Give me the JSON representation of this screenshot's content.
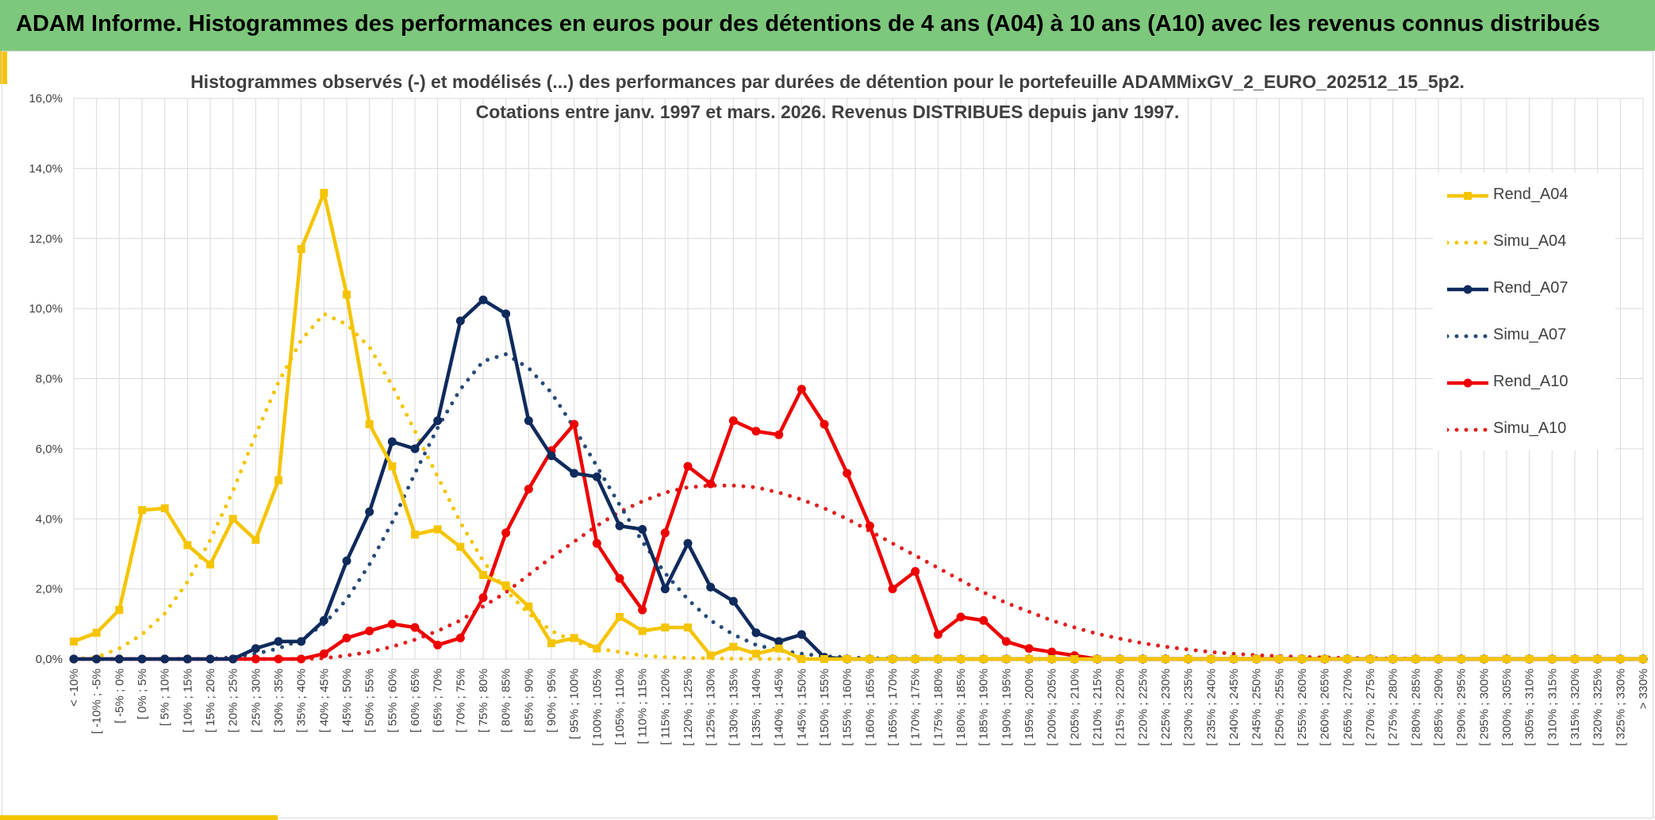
{
  "header": {
    "title": "ADAM Informe. Histogrammes des performances en euros pour des détentions de 4 ans (A04) à 10 ans (A10) avec les revenus connus distribués"
  },
  "colors": {
    "banner": "#7dc87c",
    "accent": "#f5c400",
    "Rend_A04": "#f5c400",
    "Simu_A04": "#f5c400",
    "Rend_A07": "#0f2a5c",
    "Simu_A07": "#274a78",
    "Rend_A10": "#ee0000",
    "Simu_A10": "#e02020",
    "grid": "#d9d9d9",
    "text": "#404040"
  },
  "chart_data": {
    "type": "line",
    "title": "Histogrammes observés (-) et modélisés (...) des performances par durées de détention pour le portefeuille ADAMMixGV_2_EURO_202512_15_5p2.",
    "subtitle": "Cotations entre janv. 1997 et mars. 2026. Revenus DISTRIBUES depuis janv 1997.",
    "ylim": [
      0,
      16
    ],
    "y_ticks": [
      "0,0%",
      "2,0%",
      "4,0%",
      "6,0%",
      "8,0%",
      "10,0%",
      "12,0%",
      "14,0%",
      "16,0%"
    ],
    "grid": true,
    "legend_position": "right",
    "categories": [
      "< -10%",
      "[ -10% ; -5%",
      "[ -5% ; 0%",
      "[ 0% ; 5%",
      "[ 5% ; 10%",
      "[ 10% ; 15%",
      "[ 15% ; 20%",
      "[ 20% ; 25%",
      "[ 25% ; 30%",
      "[ 30% ; 35%",
      "[ 35% ; 40%",
      "[ 40% ; 45%",
      "[ 45% ; 50%",
      "[ 50% ; 55%",
      "[ 55% ; 60%",
      "[ 60% ; 65%",
      "[ 65% ; 70%",
      "[ 70% ; 75%",
      "[ 75% ; 80%",
      "[ 80% ; 85%",
      "[ 85% ; 90%",
      "[ 90% ; 95%",
      "[ 95% ; 100%",
      "[ 100% ; 105%",
      "[ 105% ; 110%",
      "[ 110% ; 115%",
      "[ 115% ; 120%",
      "[ 120% ; 125%",
      "[ 125% ; 130%",
      "[ 130% ; 135%",
      "[ 135% ; 140%",
      "[ 140% ; 145%",
      "[ 145% ; 150%",
      "[ 150% ; 155%",
      "[ 155% ; 160%",
      "[ 160% ; 165%",
      "[ 165% ; 170%",
      "[ 170% ; 175%",
      "[ 175% ; 180%",
      "[ 180% ; 185%",
      "[ 185% ; 190%",
      "[ 190% ; 195%",
      "[ 195% ; 200%",
      "[ 200% ; 205%",
      "[ 205% ; 210%",
      "[ 210% ; 215%",
      "[ 215% ; 220%",
      "[ 220% ; 225%",
      "[ 225% ; 230%",
      "[ 230% ; 235%",
      "[ 235% ; 240%",
      "[ 240% ; 245%",
      "[ 245% ; 250%",
      "[ 250% ; 255%",
      "[ 255% ; 260%",
      "[ 260% ; 265%",
      "[ 265% ; 270%",
      "[ 270% ; 275%",
      "[ 275% ; 280%",
      "[ 280% ; 285%",
      "[ 285% ; 290%",
      "[ 290% ; 295%",
      "[ 295% ; 300%",
      "[ 300% ; 305%",
      "[ 305% ; 310%",
      "[ 310% ; 315%",
      "[ 315% ; 320%",
      "[ 320% ; 325%",
      "[ 325% ; 330%",
      "> 330%"
    ],
    "series": [
      {
        "name": "Rend_A04",
        "style": "solid",
        "marker": "square",
        "values": [
          0.5,
          0.75,
          1.4,
          4.25,
          4.3,
          3.25,
          2.7,
          4.0,
          3.4,
          5.1,
          11.7,
          13.3,
          10.4,
          6.7,
          5.5,
          3.55,
          3.7,
          3.2,
          2.4,
          2.1,
          1.5,
          0.45,
          0.6,
          0.3,
          1.2,
          0.8,
          0.9,
          0.9,
          0.1,
          0.35,
          0.15,
          0.3,
          0.0,
          0.0,
          0.0,
          0.0,
          0.0,
          0.0,
          0.0,
          0.0,
          0.0,
          0.0,
          0.0,
          0.0,
          0.0,
          0.0,
          0.0,
          0.0,
          0.0,
          0.0,
          0.0,
          0.0,
          0.0,
          0.0,
          0.0,
          0.0,
          0.0,
          0.0,
          0.0,
          0.0,
          0.0,
          0.0,
          0.0,
          0.0,
          0.0,
          0.0,
          0.0,
          0.0,
          0.0,
          0.0
        ]
      },
      {
        "name": "Simu_A04",
        "style": "dotted",
        "marker": "none",
        "values": [
          0.0,
          0.05,
          0.3,
          0.7,
          1.3,
          2.2,
          3.4,
          4.8,
          6.4,
          7.9,
          9.1,
          9.85,
          9.55,
          8.9,
          7.8,
          6.5,
          5.2,
          3.9,
          2.8,
          1.95,
          1.3,
          0.8,
          0.5,
          0.3,
          0.2,
          0.1,
          0.05,
          0.03,
          0.02,
          0.01,
          0.0,
          0.0,
          0.0,
          0.0,
          0.0,
          0.0,
          0.0,
          0.0,
          0.0,
          0.0,
          0.0,
          0.0,
          0.0,
          0.0,
          0.0,
          0.0,
          0.0,
          0.0,
          0.0,
          0.0,
          0.0,
          0.0,
          0.0,
          0.0,
          0.0,
          0.0,
          0.0,
          0.0,
          0.0,
          0.0,
          0.0,
          0.0,
          0.0,
          0.0,
          0.0,
          0.0,
          0.0,
          0.0,
          0.0,
          0.0
        ]
      },
      {
        "name": "Rend_A07",
        "style": "solid",
        "marker": "circle",
        "values": [
          0.0,
          0.0,
          0.0,
          0.0,
          0.0,
          0.0,
          0.0,
          0.0,
          0.3,
          0.5,
          0.5,
          1.1,
          2.8,
          4.2,
          6.2,
          6.0,
          6.8,
          9.65,
          10.25,
          9.85,
          6.8,
          5.8,
          5.3,
          5.2,
          3.8,
          3.7,
          2.0,
          3.3,
          2.05,
          1.65,
          0.75,
          0.5,
          0.7,
          0.05,
          0.0,
          0.0,
          0.0,
          0.0,
          0.0,
          0.0,
          0.0,
          0.0,
          0.0,
          0.0,
          0.0,
          0.0,
          0.0,
          0.0,
          0.0,
          0.0,
          0.0,
          0.0,
          0.0,
          0.0,
          0.0,
          0.0,
          0.0,
          0.0,
          0.0,
          0.0,
          0.0,
          0.0,
          0.0,
          0.0,
          0.0,
          0.0,
          0.0,
          0.0,
          0.0,
          0.0
        ]
      },
      {
        "name": "Simu_A07",
        "style": "dotted",
        "marker": "none",
        "values": [
          0.0,
          0.0,
          0.0,
          0.0,
          0.0,
          0.0,
          0.0,
          0.05,
          0.15,
          0.3,
          0.55,
          1.0,
          1.7,
          2.7,
          3.9,
          5.3,
          6.6,
          7.7,
          8.5,
          8.7,
          8.3,
          7.6,
          6.6,
          5.5,
          4.4,
          3.35,
          2.45,
          1.7,
          1.1,
          0.7,
          0.4,
          0.25,
          0.15,
          0.08,
          0.05,
          0.02,
          0.01,
          0.0,
          0.0,
          0.0,
          0.0,
          0.0,
          0.0,
          0.0,
          0.0,
          0.0,
          0.0,
          0.0,
          0.0,
          0.0,
          0.0,
          0.0,
          0.0,
          0.0,
          0.0,
          0.0,
          0.0,
          0.0,
          0.0,
          0.0,
          0.0,
          0.0,
          0.0,
          0.0,
          0.0,
          0.0,
          0.0,
          0.0,
          0.0,
          0.0
        ]
      },
      {
        "name": "Rend_A10",
        "style": "solid",
        "marker": "circle",
        "values": [
          0.0,
          0.0,
          0.0,
          0.0,
          0.0,
          0.0,
          0.0,
          0.0,
          0.0,
          0.0,
          0.0,
          0.15,
          0.6,
          0.8,
          1.0,
          0.9,
          0.4,
          0.6,
          1.75,
          3.6,
          4.85,
          5.95,
          6.7,
          3.3,
          2.3,
          1.4,
          3.6,
          5.5,
          5.0,
          6.8,
          6.5,
          6.4,
          7.7,
          6.7,
          5.3,
          3.8,
          2.0,
          2.5,
          0.7,
          1.2,
          1.1,
          0.5,
          0.3,
          0.2,
          0.1,
          0.0,
          0.0,
          0.0,
          0.0,
          0.0,
          0.0,
          0.0,
          0.0,
          0.0,
          0.0,
          0.0,
          0.0,
          0.0,
          0.0,
          0.0,
          0.0,
          0.0,
          0.0,
          0.0,
          0.0,
          0.0,
          0.0,
          0.0,
          0.0,
          0.0
        ]
      },
      {
        "name": "Simu_A10",
        "style": "dotted",
        "marker": "none",
        "values": [
          0.0,
          0.0,
          0.0,
          0.0,
          0.0,
          0.0,
          0.0,
          0.0,
          0.0,
          0.0,
          0.0,
          0.02,
          0.1,
          0.2,
          0.35,
          0.55,
          0.8,
          1.1,
          1.5,
          1.9,
          2.4,
          2.9,
          3.35,
          3.8,
          4.2,
          4.5,
          4.75,
          4.9,
          4.95,
          4.95,
          4.9,
          4.75,
          4.55,
          4.3,
          4.0,
          3.65,
          3.3,
          2.95,
          2.6,
          2.25,
          1.9,
          1.6,
          1.35,
          1.1,
          0.9,
          0.72,
          0.58,
          0.45,
          0.35,
          0.27,
          0.2,
          0.15,
          0.11,
          0.08,
          0.06,
          0.04,
          0.03,
          0.02,
          0.01,
          0.01,
          0.0,
          0.0,
          0.0,
          0.0,
          0.0,
          0.0,
          0.0,
          0.0,
          0.0,
          0.0
        ]
      }
    ]
  }
}
